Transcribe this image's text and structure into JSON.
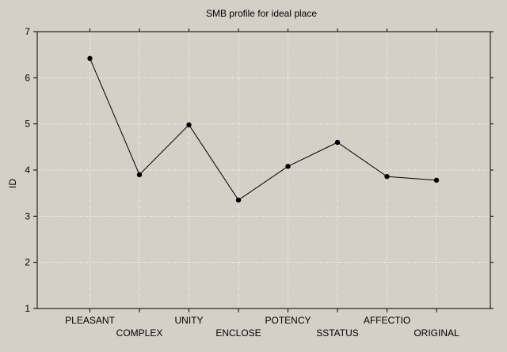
{
  "chart_data": {
    "type": "line",
    "title": "SMB profile for ideal place",
    "xlabel": "",
    "ylabel": "ID",
    "ylim": [
      1,
      7
    ],
    "yticks": [
      1,
      2,
      3,
      4,
      5,
      6,
      7
    ],
    "grid": true,
    "legend": "none",
    "categories": [
      "PLEASANT",
      "COMPLEX",
      "UNITY",
      "ENCLOSE",
      "POTENCY",
      "SSTATUS",
      "AFFECTIO",
      "ORIGINAL"
    ],
    "series": [
      {
        "name": "ID",
        "values": [
          6.42,
          3.9,
          4.98,
          3.35,
          4.08,
          4.6,
          3.86,
          3.78
        ]
      }
    ],
    "colors": {
      "background": "#d4d0c8",
      "plot_background": "#d4d0c8",
      "grid": "#ffffff",
      "line": "#000000",
      "marker": "#000000"
    }
  }
}
